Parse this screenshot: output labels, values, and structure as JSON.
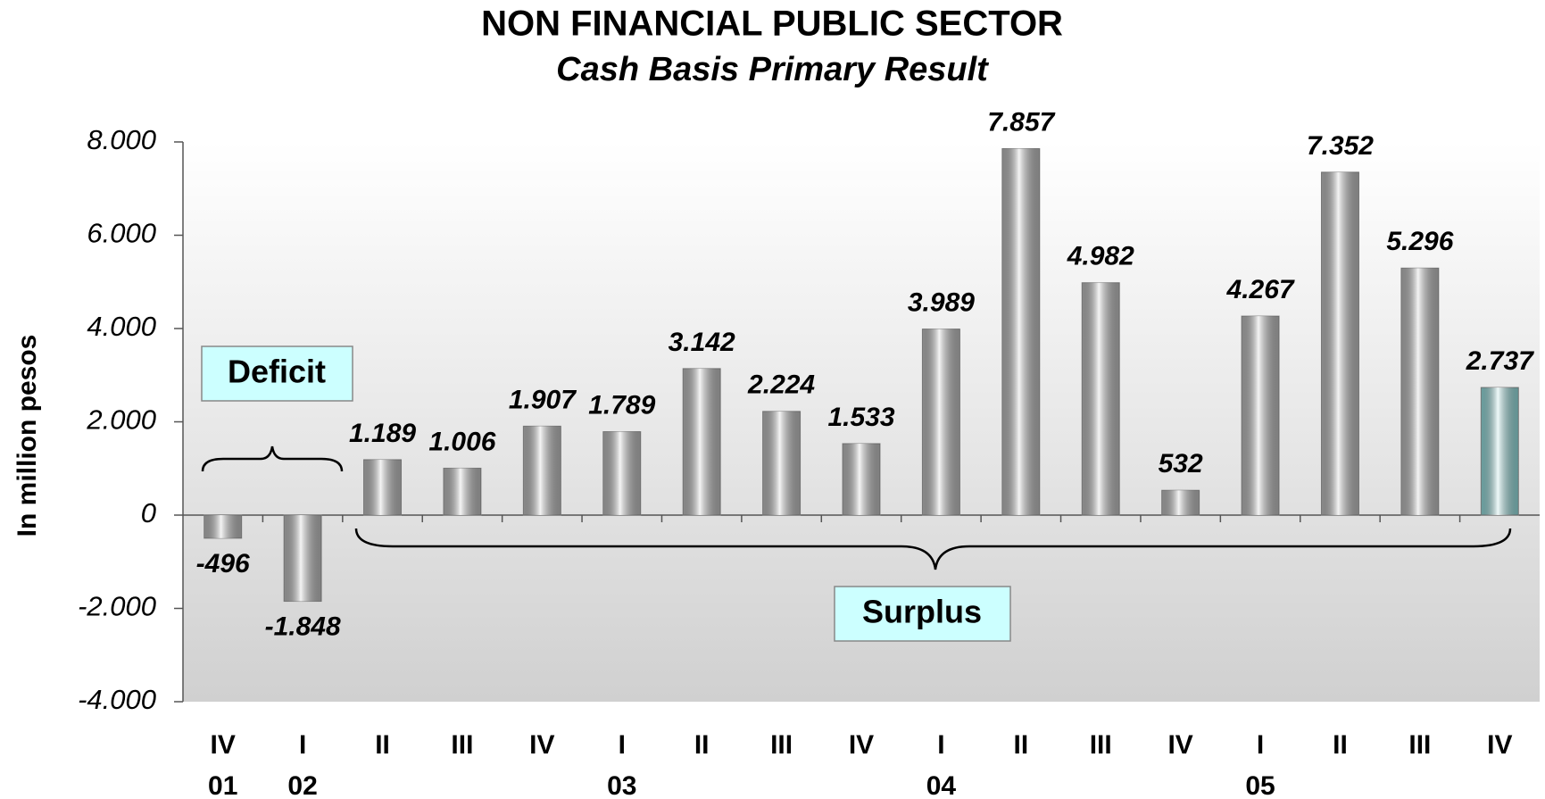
{
  "chart_data": {
    "type": "bar",
    "title": "NON FINANCIAL PUBLIC SECTOR",
    "subtitle": "Cash Basis Primary Result",
    "y_label": "In million pesos",
    "annotations": [
      "Deficit",
      "Surplus"
    ],
    "categories": [
      "IV",
      "I",
      "II",
      "III",
      "IV",
      "I",
      "II",
      "III",
      "IV",
      "I",
      "II",
      "III",
      "IV",
      "I",
      "II",
      "III",
      "IV"
    ],
    "years": [
      "01",
      "02",
      null,
      null,
      null,
      "03",
      null,
      null,
      null,
      "04",
      null,
      null,
      null,
      "05",
      null,
      null,
      null
    ],
    "values": [
      -496,
      -1848,
      1189,
      1006,
      1907,
      1789,
      3142,
      2224,
      1533,
      3989,
      7857,
      4982,
      532,
      4267,
      7352,
      5296,
      2737
    ],
    "value_labels": [
      "-496",
      "-1.848",
      "1.189",
      "1.006",
      "1.907",
      "1.789",
      "3.142",
      "2.224",
      "1.533",
      "3.989",
      "7.857",
      "4.982",
      "532",
      "4.267",
      "7.352",
      "5.296",
      "2.737"
    ],
    "colors": [
      "#b8b8b8",
      "#b8b8b8",
      "#b8b8b8",
      "#b8b8b8",
      "#b8b8b8",
      "#b8b8b8",
      "#b8b8b8",
      "#b8b8b8",
      "#b8b8b8",
      "#b8b8b8",
      "#b8b8b8",
      "#b8b8b8",
      "#b8b8b8",
      "#b8b8b8",
      "#b8b8b8",
      "#b8b8b8",
      "#8fd8d8"
    ],
    "ylim": [
      -4000,
      8000
    ],
    "yticks": [
      {
        "value": -4000,
        "label": "-4.000"
      },
      {
        "value": -2000,
        "label": "-2.000"
      },
      0,
      {
        "value": 2000,
        "label": "2.000"
      },
      {
        "value": 4000,
        "label": "4.000"
      },
      {
        "value": 6000,
        "label": "6.000"
      },
      {
        "value": 8000,
        "label": "8.000"
      }
    ],
    "grid": false
  }
}
